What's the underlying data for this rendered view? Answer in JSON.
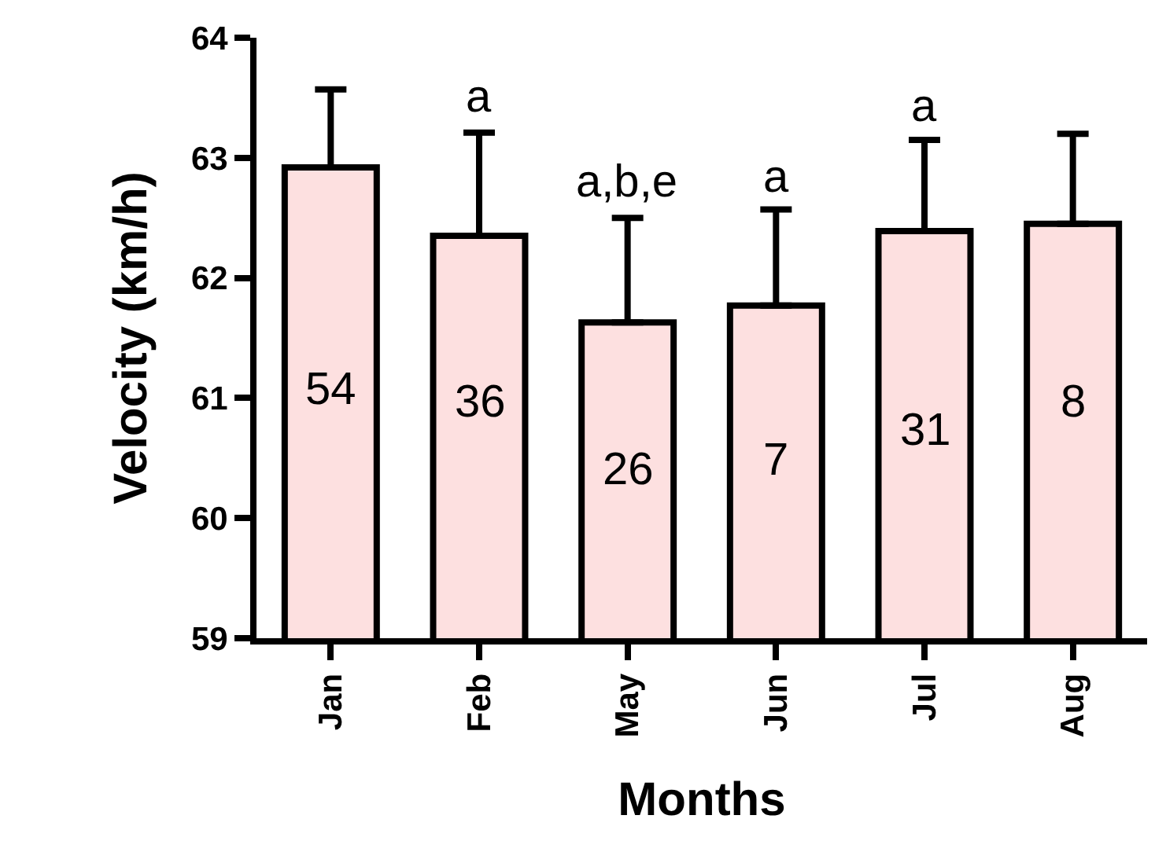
{
  "chart_data": {
    "type": "bar",
    "xlabel": "Months",
    "ylabel": "Velocity (km/h)",
    "categories": [
      "Jan",
      "Feb",
      "May",
      "Jun",
      "Jul",
      "Aug"
    ],
    "values": [
      62.92,
      62.35,
      61.63,
      61.77,
      62.39,
      62.45
    ],
    "errors": [
      [
        62.92,
        63.57
      ],
      [
        62.35,
        63.21
      ],
      [
        61.63,
        62.5
      ],
      [
        61.77,
        62.57
      ],
      [
        62.39,
        63.15
      ],
      [
        62.45,
        63.2
      ]
    ],
    "color": "#fde0e0",
    "ylim": [
      59,
      64
    ],
    "yticks": [
      59,
      60,
      61,
      62,
      63,
      64
    ],
    "grid": false,
    "annotations": [
      "54",
      "36",
      "26",
      "7",
      "31",
      "8",
      "a",
      "a,b,e",
      "a",
      "a"
    ]
  }
}
